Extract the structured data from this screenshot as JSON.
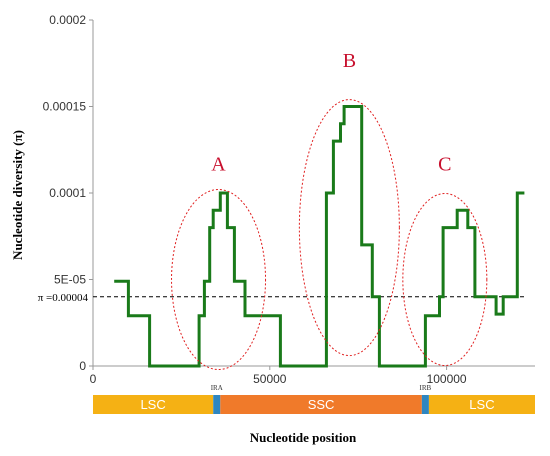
{
  "chart_data": {
    "type": "line",
    "ylabel": "Nucleotide diversity (π)",
    "xlabel": "Nucleotide position",
    "xlim": [
      0,
      125000
    ],
    "ylim": [
      0,
      0.0002
    ],
    "x_ticks": [
      0,
      50000,
      100000
    ],
    "x_tick_labels": [
      "0",
      "50000",
      "100000"
    ],
    "y_ticks": [
      0,
      5e-05,
      0.0001,
      0.00015,
      0.0002
    ],
    "y_tick_labels": [
      "0",
      "5E-05",
      "0.0001",
      "0.00015",
      "0.0002"
    ],
    "color": "#1a7a1a",
    "series": [
      {
        "x": [
          6000,
          10000,
          10000,
          16000,
          16000,
          30000,
          30000,
          31500,
          31500,
          33000,
          33000,
          34000,
          34000,
          36000,
          36000,
          38000,
          38000,
          39000,
          39000,
          40000,
          40000,
          43000,
          43000,
          48000,
          48000,
          53000,
          53000,
          58000,
          58000,
          66000,
          66000,
          68000,
          68000,
          70000,
          70000,
          71000,
          71000,
          72000,
          72000,
          76000,
          76000,
          79000,
          79000,
          81000,
          81000,
          94000,
          94000,
          98000,
          98000,
          99000,
          99000,
          102000,
          102000,
          103000,
          103000,
          106000,
          106000,
          108000,
          108000,
          112000,
          112000,
          114000,
          114000,
          116000,
          116000,
          120000,
          120000,
          122000
        ],
        "y": [
          4.9e-05,
          4.9e-05,
          2.9e-05,
          2.9e-05,
          0,
          0,
          2.9e-05,
          2.9e-05,
          4.9e-05,
          4.9e-05,
          8e-05,
          8e-05,
          9e-05,
          9e-05,
          0.0001,
          0.0001,
          8e-05,
          8e-05,
          8e-05,
          8e-05,
          4.9e-05,
          4.9e-05,
          2.9e-05,
          2.9e-05,
          2.9e-05,
          2.9e-05,
          0,
          0,
          0,
          0,
          0.0001,
          0.0001,
          0.00013,
          0.00013,
          0.00014,
          0.00014,
          0.00015,
          0.00015,
          0.00015,
          0.00015,
          7e-05,
          7e-05,
          4e-05,
          4e-05,
          0,
          0,
          2.9e-05,
          2.9e-05,
          4e-05,
          4e-05,
          8e-05,
          8e-05,
          8e-05,
          8e-05,
          9e-05,
          9e-05,
          8e-05,
          8e-05,
          4e-05,
          4e-05,
          4e-05,
          4e-05,
          3e-05,
          3e-05,
          4e-05,
          4e-05,
          0.0001,
          0.0001
        ]
      }
    ],
    "threshold": {
      "value": 4e-05,
      "label": "π =0.00004"
    },
    "annotations": [
      {
        "label": "A",
        "x": 37000,
        "y": 0.00011
      },
      {
        "label": "B",
        "x": 74000,
        "y": 0.00017
      },
      {
        "label": "C",
        "x": 101000,
        "y": 0.00011
      }
    ],
    "regions": [
      {
        "label": "LSC",
        "from": 0,
        "to": 34000,
        "color": "#f5b114"
      },
      {
        "label": "IRA",
        "from": 34000,
        "to": 36000,
        "color": "#2e86c1"
      },
      {
        "label": "SSC",
        "from": 36000,
        "to": 93000,
        "color": "#f07a2a"
      },
      {
        "label": "IRB",
        "from": 93000,
        "to": 95000,
        "color": "#2e86c1"
      },
      {
        "label": "LSC",
        "from": 95000,
        "to": 125000,
        "color": "#f5b114"
      }
    ]
  }
}
